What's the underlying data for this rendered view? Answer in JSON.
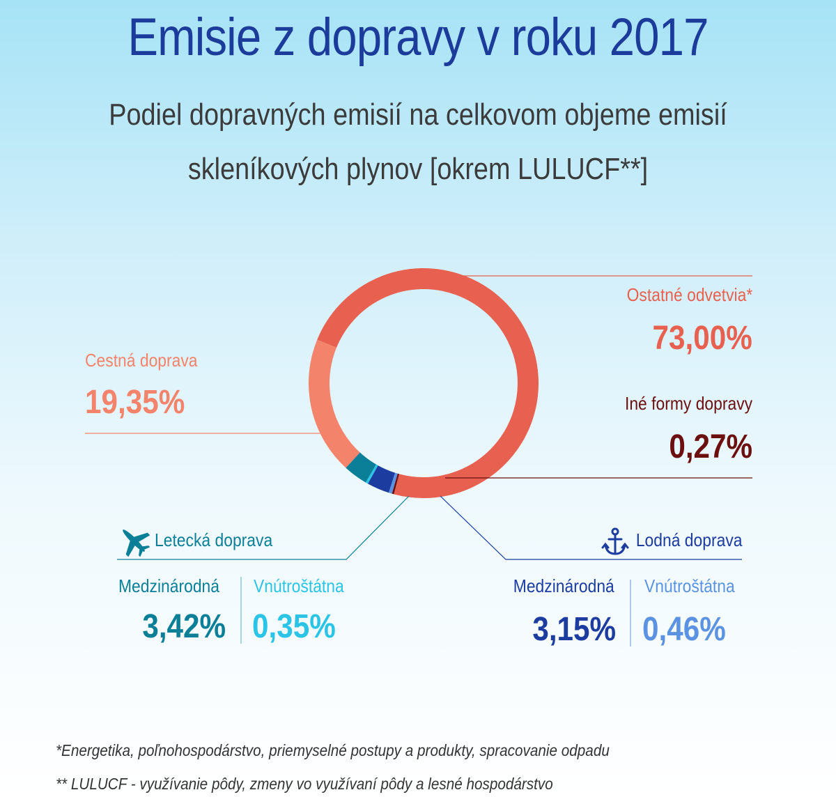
{
  "title": "Emisie z dopravy v roku 2017",
  "subtitle": [
    "Podiel dopravných emisií na celkovom objeme emisií",
    "skleníkových plynov [okrem LULUCF**]"
  ],
  "chart_data": {
    "type": "pie",
    "style": "donut",
    "slices": [
      {
        "label": "Ostatné odvetvia*",
        "value": 73.0,
        "display": "73,00%",
        "color": "#e8604f"
      },
      {
        "label": "Cestná doprava",
        "value": 19.35,
        "display": "19,35%",
        "color": "#f4836c"
      },
      {
        "label": "Letecká doprava - Medzinárodná",
        "value": 3.42,
        "display": "3,42%",
        "color": "#0a7f97"
      },
      {
        "label": "Letecká doprava - Vnútroštátna",
        "value": 0.35,
        "display": "0,35%",
        "color": "#2bc4e6"
      },
      {
        "label": "Lodná doprava - Medzinárodná",
        "value": 3.15,
        "display": "3,15%",
        "color": "#1d3ca0"
      },
      {
        "label": "Lodná doprava - Vnútroštátna",
        "value": 0.46,
        "display": "0,46%",
        "color": "#5b93e2"
      },
      {
        "label": "Iné formy dopravy",
        "value": 0.27,
        "display": "0,27%",
        "color": "#6b0f0f"
      }
    ]
  },
  "labels": {
    "ostatne": {
      "name": "Ostatné odvetvia*",
      "value": "73,00%",
      "name_color": "#e8604f",
      "value_color": "#e8604f"
    },
    "cestna": {
      "name": "Cestná doprava",
      "value": "19,35%",
      "name_color": "#f4836c",
      "value_color": "#f4836c"
    },
    "ine": {
      "name": "Iné formy dopravy",
      "value": "0,27%",
      "name_color": "#6b0f0f",
      "value_color": "#6b0f0f"
    },
    "letecka": {
      "heading": "Letecká doprava",
      "heading_color": "#0a7f97",
      "icon": "airplane-icon",
      "intl_label": "Medzinárodná",
      "intl_value": "3,42%",
      "intl_color": "#0a7f97",
      "dom_label": "Vnútroštátna",
      "dom_value": "0,35%",
      "dom_color": "#2bc4e6"
    },
    "lodna": {
      "heading": "Lodná doprava",
      "heading_color": "#1d3ca0",
      "icon": "anchor-icon",
      "intl_label": "Medzinárodná",
      "intl_value": "3,15%",
      "intl_color": "#1d3ca0",
      "dom_label": "Vnútroštátna",
      "dom_value": "0,46%",
      "dom_color": "#5b93e2"
    }
  },
  "footnotes": [
    "*Energetika, poľnohospodárstvo, priemyselné postupy a produkty, spracovanie odpadu",
    "** LULUCF - využívanie pôdy, zmeny vo využívaní pôdy a lesné hospodárstvo"
  ]
}
